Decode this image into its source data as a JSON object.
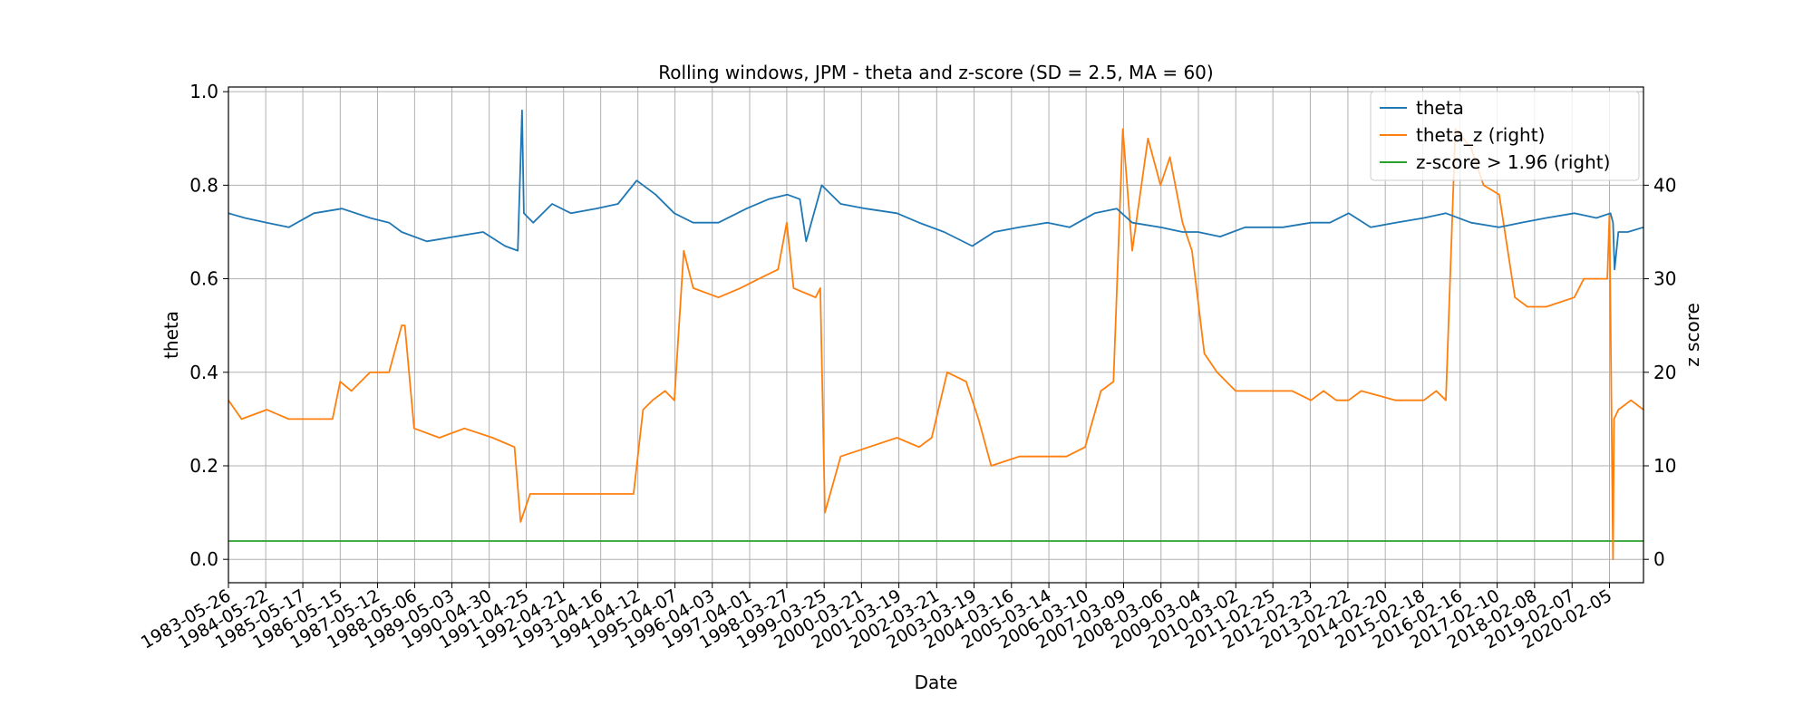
{
  "chart_data": {
    "type": "line",
    "title": "Rolling windows, JPM - theta and z-score (SD = 2.5, MA = 60)",
    "xlabel": "Date",
    "ylabel": "theta",
    "y2label": "z score",
    "grid": true,
    "legend_position": "top-right",
    "x_range": [
      "1983-05-26",
      "2020-12-31"
    ],
    "ylim": [
      -0.05,
      1.01
    ],
    "y2lim": [
      -2.5,
      50.5
    ],
    "y_ticks": [
      "0.0",
      "0.2",
      "0.4",
      "0.6",
      "0.8",
      "1.0"
    ],
    "y2_ticks": [
      "0",
      "10",
      "20",
      "30",
      "40"
    ],
    "x_tick_labels": [
      "1983-05-26",
      "1984-05-22",
      "1985-05-17",
      "1986-05-15",
      "1987-05-12",
      "1988-05-06",
      "1989-05-03",
      "1990-04-30",
      "1991-04-25",
      "1992-04-21",
      "1993-04-16",
      "1994-04-12",
      "1995-04-07",
      "1996-04-03",
      "1997-04-01",
      "1998-03-27",
      "1999-03-25",
      "2000-03-21",
      "2001-03-19",
      "2002-03-21",
      "2003-03-19",
      "2004-03-16",
      "2005-03-14",
      "2006-03-10",
      "2007-03-09",
      "2008-03-06",
      "2009-03-04",
      "2010-03-02",
      "2011-02-25",
      "2012-02-23",
      "2013-02-22",
      "2014-02-20",
      "2015-02-18",
      "2016-02-16",
      "2017-02-10",
      "2018-02-08",
      "2019-02-07",
      "2020-02-05"
    ],
    "series": [
      {
        "name": "theta",
        "axis": "left",
        "color": "#1f77b4",
        "x": [
          "1983-05-26",
          "1983-11-01",
          "1984-06-01",
          "1985-01-01",
          "1985-09-01",
          "1986-06-01",
          "1987-03-01",
          "1987-09-01",
          "1988-01-01",
          "1988-09-01",
          "1989-06-01",
          "1990-03-01",
          "1990-10-01",
          "1991-02-01",
          "1991-03-15",
          "1991-04-01",
          "1991-07-01",
          "1992-01-01",
          "1992-07-01",
          "1993-03-01",
          "1993-10-01",
          "1994-04-01",
          "1994-10-01",
          "1995-04-01",
          "1995-10-01",
          "1996-06-01",
          "1997-03-01",
          "1997-10-01",
          "1998-04-01",
          "1998-08-01",
          "1998-10-01",
          "1999-03-01",
          "1999-09-01",
          "2000-05-01",
          "2001-03-01",
          "2001-10-01",
          "2002-06-01",
          "2003-03-01",
          "2003-10-01",
          "2004-06-01",
          "2005-03-01",
          "2005-10-01",
          "2006-06-01",
          "2007-01-01",
          "2007-06-01",
          "2008-03-01",
          "2008-10-01",
          "2009-03-01",
          "2009-10-01",
          "2010-06-01",
          "2011-06-01",
          "2012-03-01",
          "2012-09-01",
          "2013-03-01",
          "2013-10-01",
          "2014-06-01",
          "2015-03-01",
          "2015-10-01",
          "2016-06-01",
          "2017-03-01",
          "2017-10-01",
          "2018-06-01",
          "2019-03-01",
          "2019-10-01",
          "2020-02-15",
          "2020-03-10",
          "2020-03-25",
          "2020-05-01",
          "2020-08-01",
          "2020-12-31"
        ],
        "values": [
          0.74,
          0.73,
          0.72,
          0.71,
          0.74,
          0.75,
          0.73,
          0.72,
          0.7,
          0.68,
          0.69,
          0.7,
          0.67,
          0.66,
          0.96,
          0.74,
          0.72,
          0.76,
          0.74,
          0.75,
          0.76,
          0.81,
          0.78,
          0.74,
          0.72,
          0.72,
          0.75,
          0.77,
          0.78,
          0.77,
          0.68,
          0.8,
          0.76,
          0.75,
          0.74,
          0.72,
          0.7,
          0.67,
          0.7,
          0.71,
          0.72,
          0.71,
          0.74,
          0.75,
          0.72,
          0.71,
          0.7,
          0.7,
          0.69,
          0.71,
          0.71,
          0.72,
          0.72,
          0.74,
          0.71,
          0.72,
          0.73,
          0.74,
          0.72,
          0.71,
          0.72,
          0.73,
          0.74,
          0.73,
          0.74,
          0.72,
          0.62,
          0.7,
          0.7,
          0.71
        ]
      },
      {
        "name": "theta_z (right)",
        "axis": "right",
        "color": "#ff7f0e",
        "x": [
          "1983-05-26",
          "1983-10-01",
          "1984-06-01",
          "1985-01-01",
          "1985-09-01",
          "1986-03-01",
          "1986-05-15",
          "1986-09-01",
          "1987-03-01",
          "1987-05-12",
          "1987-09-01",
          "1988-01-01",
          "1988-02-01",
          "1988-05-01",
          "1989-01-01",
          "1989-09-01",
          "1990-06-01",
          "1991-01-01",
          "1991-03-01",
          "1991-06-01",
          "1992-01-01",
          "1992-09-01",
          "1993-06-01",
          "1994-03-01",
          "1994-06-01",
          "1994-09-01",
          "1995-01-01",
          "1995-04-01",
          "1995-07-01",
          "1995-10-01",
          "1996-06-01",
          "1997-01-01",
          "1997-07-01",
          "1998-01-01",
          "1998-03-27",
          "1998-06-01",
          "1999-01-01",
          "1999-02-15",
          "1999-04-01",
          "1999-09-01",
          "2000-06-01",
          "2001-03-01",
          "2001-10-01",
          "2002-02-01",
          "2002-07-01",
          "2003-01-01",
          "2003-05-01",
          "2003-09-01",
          "2004-06-01",
          "2005-03-01",
          "2005-09-01",
          "2006-03-01",
          "2006-08-01",
          "2006-12-01",
          "2007-03-01",
          "2007-06-01",
          "2007-11-01",
          "2008-03-01",
          "2008-06-01",
          "2008-10-01",
          "2009-01-01",
          "2009-05-01",
          "2009-09-01",
          "2010-03-01",
          "2011-03-01",
          "2011-09-01",
          "2012-03-01",
          "2012-07-01",
          "2012-11-01",
          "2013-03-01",
          "2013-07-01",
          "2014-06-01",
          "2015-03-01",
          "2015-07-01",
          "2015-10-01",
          "2016-01-01",
          "2016-06-01",
          "2016-10-01",
          "2017-03-01",
          "2017-08-01",
          "2017-12-01",
          "2018-06-01",
          "2019-03-01",
          "2019-06-01",
          "2019-10-01",
          "2020-01-15",
          "2020-02-05",
          "2020-03-10",
          "2020-03-20",
          "2020-05-01",
          "2020-09-01",
          "2020-12-31"
        ],
        "values": [
          17,
          15,
          16,
          15,
          15,
          15,
          19,
          18,
          20,
          20,
          20,
          25,
          25,
          14,
          13,
          14,
          13,
          12,
          4,
          7,
          7,
          7,
          7,
          7,
          16,
          17,
          18,
          17,
          33,
          29,
          28,
          29,
          30,
          31,
          36,
          29,
          28,
          29,
          5,
          11,
          12,
          13,
          12,
          13,
          20,
          19,
          15,
          10,
          11,
          11,
          11,
          12,
          18,
          19,
          46,
          33,
          45,
          40,
          43,
          36,
          33,
          22,
          20,
          18,
          18,
          18,
          17,
          18,
          17,
          17,
          18,
          17,
          17,
          18,
          17,
          46,
          44,
          40,
          39,
          28,
          27,
          27,
          28,
          30,
          30,
          30,
          37,
          0,
          15,
          16,
          17,
          16
        ]
      },
      {
        "name": "z-score > 1.96 (right)",
        "axis": "right",
        "color": "#2ca02c",
        "x": [
          "1983-05-26",
          "2020-12-31"
        ],
        "values": [
          1.96,
          1.96
        ]
      }
    ]
  }
}
